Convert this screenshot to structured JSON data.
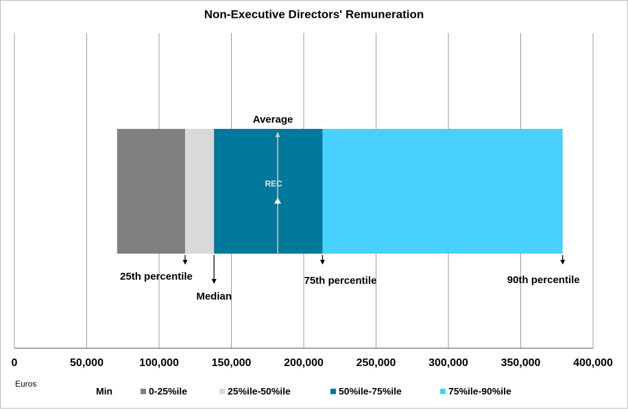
{
  "chart_data": {
    "type": "stacked-barh",
    "title": "Non-Executive Directors' Remuneration",
    "x_label": "Euros",
    "series": [
      {
        "name": "Min",
        "color": "none",
        "values": [
          71000
        ]
      },
      {
        "name": "0-25%ile",
        "color": "#808080",
        "values": [
          47000
        ]
      },
      {
        "name": "25%ile-50%ile",
        "color": "#d9d9d9",
        "values": [
          20000
        ]
      },
      {
        "name": "50%ile-75%ile",
        "color": "#00789c",
        "values": [
          75000
        ]
      },
      {
        "name": "75%ile-90%ile",
        "color": "#48d1fe",
        "values": [
          166000
        ]
      }
    ],
    "average": {
      "label": "Average",
      "marker_label": "REC",
      "value": 182000
    },
    "segment_end_labels": [
      "25th percentile",
      "Median",
      "75th percentile",
      "90th percentile"
    ],
    "xlim": [
      0,
      400000
    ],
    "xticks": [
      0,
      {
        "value": 50000,
        "label": "50,000"
      },
      {
        "value": 100000,
        "label": "100,000"
      },
      {
        "value": 150000,
        "label": "150,000"
      },
      {
        "value": 200000,
        "label": "200,000"
      },
      {
        "value": 250000,
        "label": "250,000"
      },
      {
        "value": 300000,
        "label": "300,000"
      },
      {
        "value": 350000,
        "label": "350,000"
      },
      {
        "value": 400000,
        "label": "400,000"
      }
    ],
    "grid": true
  }
}
